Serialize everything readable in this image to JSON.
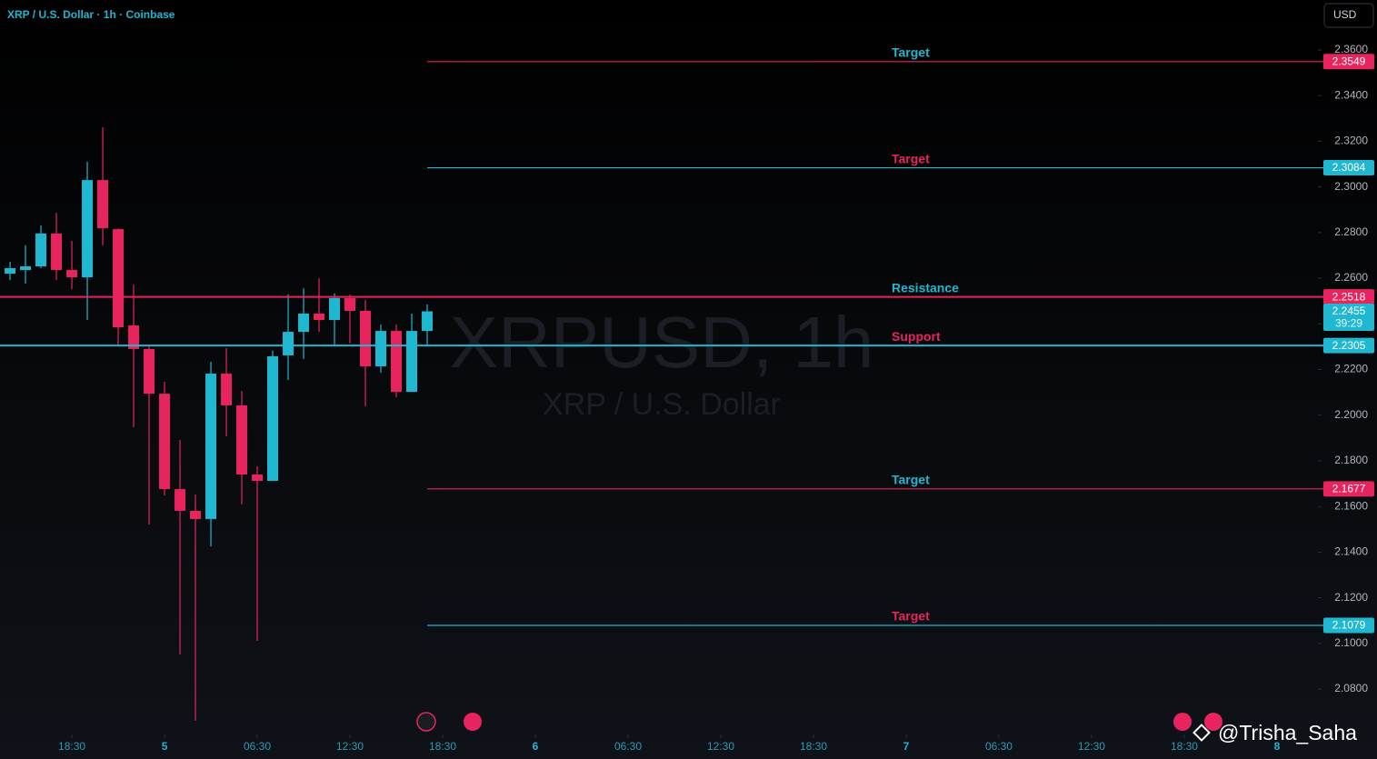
{
  "chart_data": {
    "type": "candlestick",
    "title": "XRP / U.S. Dollar · 1h · Coinbase",
    "watermark": "XRPUSD, 1h",
    "watermark_subtitle": "XRP / U.S. Dollar",
    "currency": "USD",
    "credit": "@Trisha_Saha",
    "x": [
      -9.5,
      -8.5,
      -7.5,
      -6.5,
      -5.5,
      -4.5,
      -3.5,
      -2.5,
      -1.5,
      -0.5,
      0.5,
      1.5,
      2.5,
      3.5,
      4.5,
      5.5,
      6.5,
      7.5,
      8.5,
      9.5,
      10.5,
      11.5,
      12.5,
      13.5,
      14.5,
      15.5,
      16.5,
      17.5
    ],
    "open": [
      2.262,
      2.2636,
      2.2652,
      2.2796,
      2.2636,
      2.2604,
      2.303,
      2.2815,
      2.2393,
      2.229,
      2.2094,
      2.1676,
      2.1581,
      2.1545,
      2.2182,
      2.2043,
      2.174,
      2.1712,
      2.2262,
      2.2365,
      2.2445,
      2.2417,
      2.2513,
      2.2457,
      2.2214,
      2.2369,
      2.2102,
      2.2369
    ],
    "high": [
      2.2672,
      2.2744,
      2.2831,
      2.2887,
      2.2764,
      2.311,
      2.3261,
      2.2819,
      2.2572,
      2.2306,
      2.2146,
      2.1891,
      2.1652,
      2.2234,
      2.2294,
      2.2106,
      2.1776,
      2.2282,
      2.2529,
      2.2556,
      2.26,
      2.2533,
      2.2529,
      2.2505,
      2.2397,
      2.2397,
      2.2445,
      2.2485
    ],
    "low": [
      2.2592,
      2.2576,
      2.2644,
      2.2592,
      2.2552,
      2.2417,
      2.2744,
      2.2306,
      2.1947,
      2.1521,
      2.1648,
      2.0951,
      2.0661,
      2.1425,
      2.1907,
      2.1609,
      2.1011,
      2.1712,
      2.2154,
      2.2246,
      2.2365,
      2.2302,
      2.2314,
      2.2039,
      2.2186,
      2.2078,
      2.2102,
      2.2306
    ],
    "close": [
      2.2644,
      2.2652,
      2.2796,
      2.2636,
      2.2604,
      2.303,
      2.2819,
      2.2385,
      2.229,
      2.2094,
      2.1676,
      2.1581,
      2.1545,
      2.2182,
      2.2043,
      2.174,
      2.1712,
      2.2258,
      2.2365,
      2.2445,
      2.2417,
      2.2513,
      2.2457,
      2.2214,
      2.2369,
      2.2102,
      2.2369,
      2.2455
    ],
    "up_color": "#1fb8d0",
    "down_color": "#e8245e",
    "xlim": [
      -10.15,
      75.15
    ],
    "xticks": [
      {
        "value": -5.5,
        "label": "18:30"
      },
      {
        "value": 0.5,
        "label": "5"
      },
      {
        "value": 6.5,
        "label": "06:30"
      },
      {
        "value": 12.5,
        "label": "12:30"
      },
      {
        "value": 18.5,
        "label": "18:30"
      },
      {
        "value": 24.5,
        "label": "6"
      },
      {
        "value": 30.5,
        "label": "06:30"
      },
      {
        "value": 36.5,
        "label": "12:30"
      },
      {
        "value": 42.5,
        "label": "18:30"
      },
      {
        "value": 48.5,
        "label": "7"
      },
      {
        "value": 54.5,
        "label": "06:30"
      },
      {
        "value": 60.5,
        "label": "12:30"
      },
      {
        "value": 66.5,
        "label": "18:30"
      },
      {
        "value": 72.5,
        "label": "8"
      }
    ],
    "ylim": [
      2.0601,
      2.3819
    ],
    "yticks": [
      {
        "value": 2.08,
        "label": "2.0800"
      },
      {
        "value": 2.1,
        "label": "2.1000"
      },
      {
        "value": 2.12,
        "label": "2.1200"
      },
      {
        "value": 2.14,
        "label": "2.1400"
      },
      {
        "value": 2.16,
        "label": "2.1600"
      },
      {
        "value": 2.18,
        "label": "2.1800"
      },
      {
        "value": 2.2,
        "label": "2.2000"
      },
      {
        "value": 2.22,
        "label": "2.2200"
      },
      {
        "value": 2.24,
        "label": "2.2400"
      },
      {
        "value": 2.26,
        "label": "2.2600"
      },
      {
        "value": 2.28,
        "label": "2.2800"
      },
      {
        "value": 2.3,
        "label": "2.3000"
      },
      {
        "value": 2.32,
        "label": "2.3200"
      },
      {
        "value": 2.34,
        "label": "2.3400"
      },
      {
        "value": 2.36,
        "label": "2.3600"
      }
    ],
    "levels": [
      {
        "name": "Target",
        "value": 2.3549,
        "color": "#e8245e",
        "label_color": "#1fb8d0",
        "full_width": false
      },
      {
        "name": "Target",
        "value": 2.3084,
        "color": "#1fb8d0",
        "label_color": "#e8245e",
        "full_width": false
      },
      {
        "name": "Resistance",
        "value": 2.2518,
        "color": "#e8245e",
        "label_color": "#1fb8d0",
        "full_width": true
      },
      {
        "name": "Support",
        "value": 2.2305,
        "color": "#1fb8d0",
        "label_color": "#e8245e",
        "full_width": true
      },
      {
        "name": "Target",
        "value": 2.1677,
        "color": "#e8245e",
        "label_color": "#1fb8d0",
        "full_width": false
      },
      {
        "name": "Target",
        "value": 2.1079,
        "color": "#1fb8d0",
        "label_color": "#e8245e",
        "full_width": false
      }
    ],
    "last_price": {
      "value": 2.2455,
      "countdown": "39:29",
      "color": "#1fb8d0"
    }
  }
}
